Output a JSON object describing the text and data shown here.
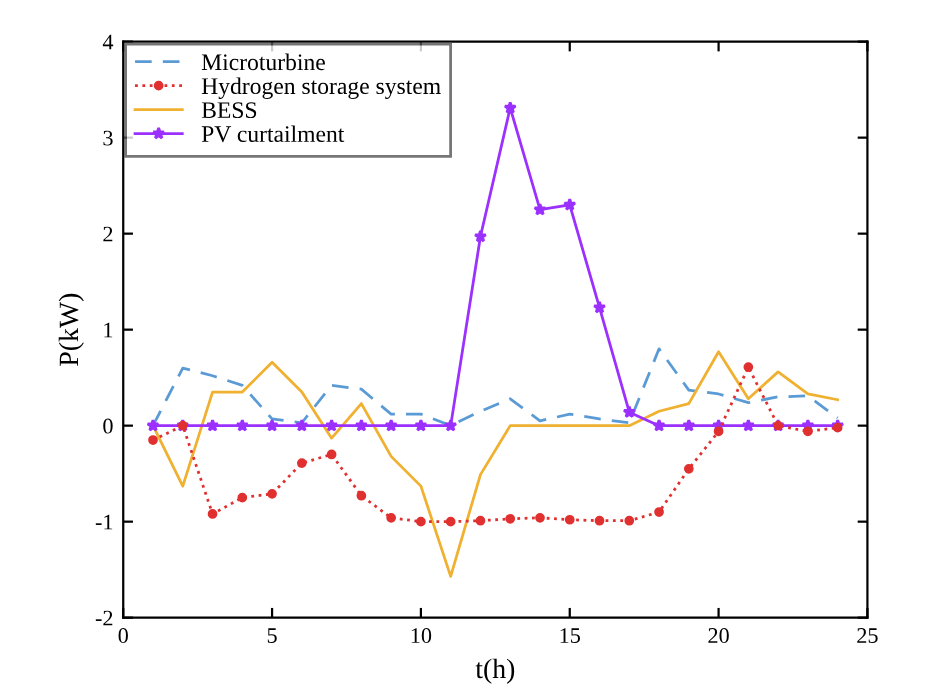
{
  "chart_data": {
    "type": "line",
    "xlabel": "t(h)",
    "ylabel": "P(kW)",
    "x": [
      1,
      2,
      3,
      4,
      5,
      6,
      7,
      8,
      9,
      10,
      11,
      12,
      13,
      14,
      15,
      16,
      17,
      18,
      19,
      20,
      21,
      22,
      23,
      24
    ],
    "series": [
      {
        "name": "Microturbine",
        "color": "#5b9bd5",
        "line_style": "dashed",
        "marker": "none",
        "values": [
          0,
          0.6,
          0.52,
          0.42,
          0.07,
          0.03,
          0.42,
          0.38,
          0.12,
          0.12,
          0,
          0.15,
          0.28,
          0.05,
          0.12,
          0.07,
          0.03,
          0.8,
          0.37,
          0.33,
          0.24,
          0.3,
          0.31,
          0.08
        ]
      },
      {
        "name": "Hydrogen storage system",
        "color": "#e03030",
        "line_style": "dotted",
        "marker": "circle",
        "values": [
          -0.15,
          0,
          -0.92,
          -0.75,
          -0.71,
          -0.39,
          -0.3,
          -0.73,
          -0.96,
          -1.0,
          -1.0,
          -0.99,
          -0.97,
          -0.96,
          -0.98,
          -0.99,
          -0.99,
          -0.9,
          -0.45,
          -0.06,
          0.61,
          0,
          -0.06,
          -0.02
        ]
      },
      {
        "name": "BESS",
        "color": "#f0b030",
        "line_style": "solid",
        "marker": "none",
        "values": [
          0,
          -0.63,
          0.35,
          0.35,
          0.66,
          0.35,
          -0.13,
          0.23,
          -0.32,
          -0.63,
          -1.57,
          -0.51,
          0,
          0,
          0,
          0,
          0,
          0.15,
          0.23,
          0.77,
          0.28,
          0.56,
          0.33,
          0.27
        ]
      },
      {
        "name": "PV curtailment",
        "color": "#9b30ff",
        "line_style": "solid",
        "marker": "star",
        "values": [
          0,
          0,
          0,
          0,
          0,
          0,
          0,
          0,
          0,
          0,
          0,
          1.97,
          3.31,
          2.25,
          2.3,
          1.23,
          0.14,
          0,
          0,
          0,
          0,
          0,
          0,
          0
        ]
      }
    ],
    "xlim": [
      0,
      25
    ],
    "xticks": [
      0,
      5,
      10,
      15,
      20,
      25
    ],
    "ylim": [
      -2,
      4
    ],
    "yticks": [
      -2,
      -1,
      0,
      1,
      2,
      3,
      4
    ],
    "grid": false,
    "legend": "top left"
  }
}
